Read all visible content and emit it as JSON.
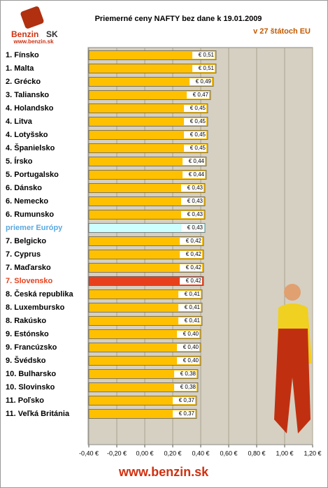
{
  "chart_data": {
    "type": "hbar",
    "title": "Priemerné ceny NAFTY bez dane k 19.01.2009",
    "subtitle": "v 27 štátoch EU",
    "logo": {
      "name": "Benzin",
      "country": "SK",
      "url": "www.benzin.sk"
    },
    "footer": "www.benzin.sk",
    "categories": [
      "1. Fínsko",
      "1. Malta",
      "2. Grécko",
      "3. Taliansko",
      "4. Holandsko",
      "4. Litva",
      "4. Lotyšsko",
      "4. Španielsko",
      "5. Írsko",
      "5. Portugalsko",
      "6. Dánsko",
      "6. Nemecko",
      "6. Rumunsko",
      "priemer Európy",
      "7. Belgicko",
      "7. Cyprus",
      "7. Maďarsko",
      "7. Slovensko",
      "8. Česká republika",
      "8. Luxembursko",
      "8. Rakúsko",
      "9. Estónsko",
      "9. Francúzsko",
      "9. Švédsko",
      "10. Bulharsko",
      "10. Slovinsko",
      "11. Poľsko",
      "11. Veľká Británia"
    ],
    "values": [
      0.51,
      0.51,
      0.49,
      0.47,
      0.45,
      0.45,
      0.45,
      0.45,
      0.44,
      0.44,
      0.43,
      0.43,
      0.43,
      0.43,
      0.42,
      0.42,
      0.42,
      0.42,
      0.41,
      0.41,
      0.41,
      0.4,
      0.4,
      0.4,
      0.38,
      0.38,
      0.37,
      0.37
    ],
    "value_labels": [
      "€ 0,51",
      "€ 0,51",
      "€ 0,49",
      "€ 0,47",
      "€ 0,45",
      "€ 0,45",
      "€ 0,45",
      "€ 0,45",
      "€ 0,44",
      "€ 0,44",
      "€ 0,43",
      "€ 0,43",
      "€ 0,43",
      "€ 0,43",
      "€ 0,42",
      "€ 0,42",
      "€ 0,42",
      "€ 0,42",
      "€ 0,41",
      "€ 0,41",
      "€ 0,41",
      "€ 0,40",
      "€ 0,40",
      "€ 0,40",
      "€ 0,38",
      "€ 0,38",
      "€ 0,37",
      "€ 0,37"
    ],
    "color": "#ffc000",
    "colors": [
      null,
      null,
      null,
      null,
      null,
      null,
      null,
      null,
      null,
      null,
      null,
      null,
      null,
      "#ccffff",
      null,
      null,
      null,
      "#e8401c",
      null,
      null,
      null,
      null,
      null,
      null,
      null,
      null,
      null,
      null
    ],
    "label_colors": [
      null,
      null,
      null,
      null,
      null,
      null,
      null,
      null,
      null,
      null,
      null,
      null,
      null,
      "#5aa8e0",
      null,
      null,
      null,
      "#e8401c",
      null,
      null,
      null,
      null,
      null,
      null,
      null,
      null,
      null,
      null
    ],
    "xlim": [
      -0.4,
      1.2
    ],
    "xticks": [
      {
        "value": -0.4,
        "label": "-0,40 €"
      },
      {
        "value": -0.2,
        "label": "-0,20 €"
      },
      {
        "value": 0,
        "label": "0,00 €"
      },
      {
        "value": 0.2,
        "label": "0,20 €"
      },
      {
        "value": 0.4,
        "label": "0,40 €"
      },
      {
        "value": 0.6,
        "label": "0,60 €"
      },
      {
        "value": 0.8,
        "label": "0,80 €"
      },
      {
        "value": 1.0,
        "label": "1,00 €"
      },
      {
        "value": 1.2,
        "label": "1,20 €"
      }
    ],
    "grid": true
  }
}
